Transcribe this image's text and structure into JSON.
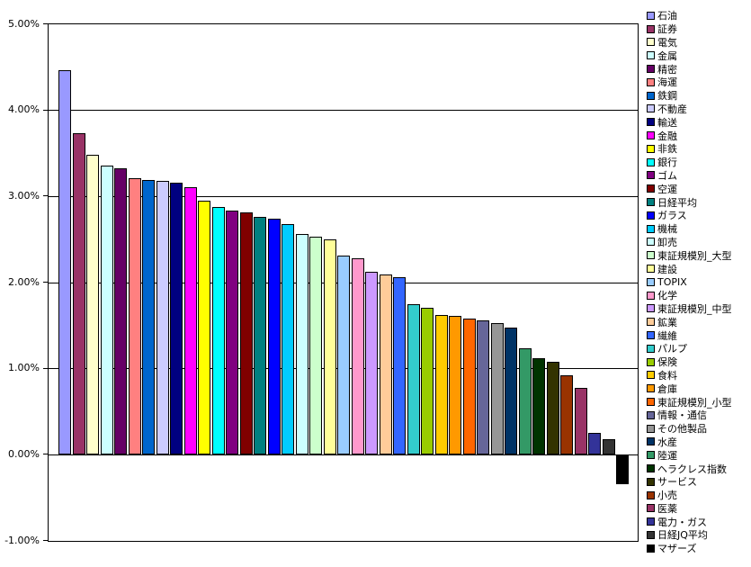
{
  "chart_data": {
    "type": "bar",
    "title": "",
    "xlabel": "",
    "ylabel": "",
    "ylim": [
      -1.0,
      5.0
    ],
    "grid": true,
    "legend_position": "right",
    "background_color": "#FFFFFF",
    "axis_color": "#000000",
    "ytick_labels": [
      "5.00%",
      "4.00%",
      "3.00%",
      "2.00%",
      "1.00%",
      "0.00%",
      "-1.00%"
    ],
    "ytick_values": [
      5,
      4,
      3,
      2,
      1,
      0,
      -1
    ],
    "categories": [
      "石油",
      "証券",
      "電気",
      "金属",
      "精密",
      "海運",
      "鉄鋼",
      "不動産",
      "輸送",
      "金融",
      "非鉄",
      "銀行",
      "ゴム",
      "空運",
      "日経平均",
      "ガラス",
      "機械",
      "卸売",
      "東証規模別_大型",
      "建設",
      "TOPIX",
      "化学",
      "東証規模別_中型",
      "鉱業",
      "繊維",
      "パルプ",
      "保険",
      "食料",
      "倉庫",
      "東証規模別_小型",
      "情報・通信",
      "その他製品",
      "水産",
      "陸運",
      "ヘラクレス指数",
      "サービス",
      "小売",
      "医薬",
      "電力・ガス",
      "日経JQ平均",
      "マザーズ"
    ],
    "values": [
      4.47,
      3.73,
      3.48,
      3.36,
      3.33,
      3.21,
      3.19,
      3.18,
      3.16,
      3.11,
      2.95,
      2.88,
      2.84,
      2.82,
      2.76,
      2.74,
      2.68,
      2.56,
      2.53,
      2.5,
      2.31,
      2.28,
      2.13,
      2.09,
      2.06,
      1.75,
      1.71,
      1.62,
      1.61,
      1.58,
      1.56,
      1.53,
      1.48,
      1.24,
      1.12,
      1.08,
      0.92,
      0.78,
      0.25,
      0.18,
      -0.34
    ],
    "bar_colors": [
      "#9999FF",
      "#993366",
      "#FFFFCC",
      "#CCFFFF",
      "#660066",
      "#FF8080",
      "#0066CC",
      "#CCCCFF",
      "#000080",
      "#FF00FF",
      "#FFFF00",
      "#00FFFF",
      "#800080",
      "#800000",
      "#008080",
      "#0000FF",
      "#00CCFF",
      "#CCFFFF",
      "#CCFFCC",
      "#FFFF99",
      "#99CCFF",
      "#FF99CC",
      "#CC99FF",
      "#FFCC99",
      "#3366FF",
      "#33CCCC",
      "#99CC00",
      "#FFCC00",
      "#FF9900",
      "#FF6600",
      "#666699",
      "#969696",
      "#003366",
      "#339966",
      "#003300",
      "#333300",
      "#993300",
      "#993366",
      "#333399",
      "#333333",
      "#000000"
    ]
  }
}
